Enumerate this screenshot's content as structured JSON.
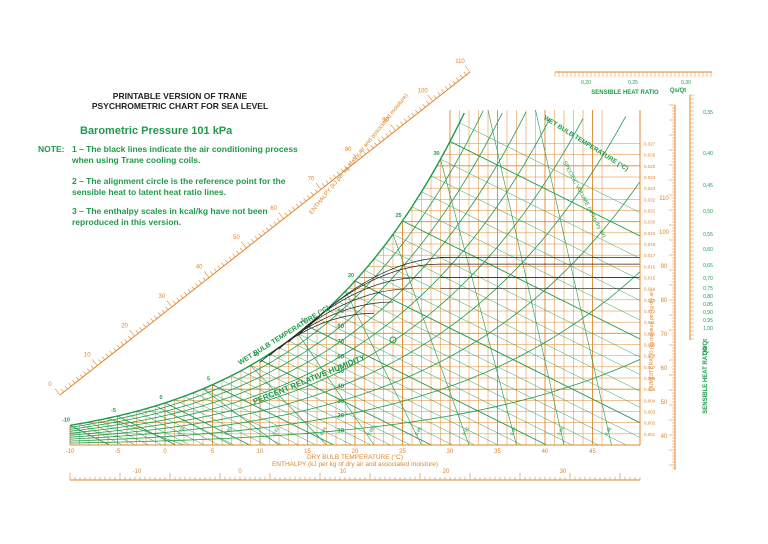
{
  "header": {
    "title_line1": "PRINTABLE VERSION OF TRANE",
    "title_line2": "PSYCHROMETRIC CHART FOR SEA LEVEL",
    "pressure": "Barometric Pressure 101 kPa",
    "note_label": "NOTE:",
    "notes": [
      "1 – The black lines indicate the air conditioning process when using Trane cooling coils.",
      "2 – The alignment circle is the reference point for the sensible heat to latent heat ratio lines.",
      "3 – The enthalpy scales in kcal/kg have not been reproduced in this version."
    ]
  },
  "colors": {
    "orange": "#e0862a",
    "green": "#1f9a4a",
    "black": "#222222"
  },
  "chart_data": {
    "type": "line",
    "title": "PRINTABLE VERSION OF TRANE PSYCHROMETRIC CHART FOR SEA LEVEL",
    "xlabel": "DRY BULB TEMPERATURE (°C)",
    "enthalpy_label_bottom": "ENTHALPY (kJ per kg of dry air and associated moisture)",
    "enthalpy_label_diagonal": "ENTHALPY (kJ per kg of dry air and associated moisture)",
    "right_axis_label": "HUMIDITY RATIO (kg moisture per kg dry air)",
    "wet_bulb_label": "WET BULB TEMPERATURE (°C)",
    "wet_bulb_label_right": "WET BULB TEMPERATURE (°C)",
    "rh_label": "PERCENT RELATIVE HUMIDITY",
    "sensible_heat_ratio_label": "SENSIBLE HEAT RATIO",
    "shr_symbol": "Qs/Qt",
    "specific_volume_label": "SPECIFIC VOLUME (m³/kg dry air)",
    "xlim": [
      -10,
      50
    ],
    "ylim": [
      0,
      0.03
    ],
    "dry_bulb_ticks": [
      -10,
      -5,
      0,
      5,
      10,
      15,
      20,
      25,
      30,
      35,
      40,
      45
    ],
    "humidity_ratio_ticks": [
      "0,001",
      "0,002",
      "0,003",
      "0,004",
      "0,005",
      "0,006",
      "0,007",
      "0,008",
      "0,009",
      "0,010",
      "0,011",
      "0,012",
      "0,013",
      "0,014",
      "0,015",
      "0,016",
      "0,017",
      "0,018",
      "0,019",
      "0,020",
      "0,021",
      "0,022",
      "0,023",
      "0,024",
      "0,025",
      "0,026",
      "0,027"
    ],
    "relative_humidity_curves": [
      10,
      20,
      30,
      40,
      50,
      60,
      70,
      80,
      90,
      100
    ],
    "relative_humidity_labels": [
      "10",
      "20",
      "30",
      "40",
      "50",
      "60",
      "70",
      "80",
      "90"
    ],
    "wet_bulb_labels": [
      "-10",
      "-5",
      "0",
      "5",
      "10",
      "15",
      "20",
      "25",
      "30"
    ],
    "enthalpy_diagonal_labels": [
      "0",
      "10",
      "20",
      "30",
      "40",
      "50",
      "60",
      "70",
      "80",
      "90",
      "100",
      "110"
    ],
    "enthalpy_bottom_labels": [
      "-10",
      "0",
      "10",
      "20",
      "30"
    ],
    "enthalpy_right_labels": [
      "110",
      "100",
      "90",
      "80",
      "70",
      "60",
      "50",
      "40"
    ],
    "specific_volume_labels": [
      "0,78",
      "0,80",
      "0,82",
      "0,84",
      "0,86",
      "0,88",
      "0,90",
      "0,92",
      "0,94",
      "0,96"
    ],
    "shr_top_ticks": [
      "0,20",
      "0,25",
      "0,30"
    ],
    "shr_right_ticks": [
      "0,35",
      "0,40",
      "0,45",
      "0,50",
      "0,55",
      "0,60",
      "0,65",
      "0,70",
      "0,75",
      "0,80",
      "0,85",
      "0,90",
      "0,95",
      "1,00"
    ],
    "grid": true
  }
}
